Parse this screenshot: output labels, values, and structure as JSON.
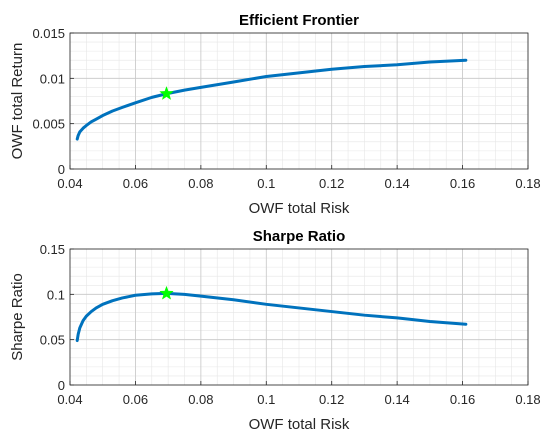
{
  "colors": {
    "series": "#0072BD",
    "marker": "#00FF00",
    "grid_major": "#c8c8c8",
    "grid_minor": "#e6e6e6",
    "axis": "#262626"
  },
  "chart_data": [
    {
      "type": "line",
      "title": "Efficient Frontier",
      "xlabel": "OWF total Risk",
      "ylabel": "OWF total Return",
      "xlim": [
        0.04,
        0.18
      ],
      "ylim": [
        0,
        0.015
      ],
      "xticks": [
        0.04,
        0.06,
        0.08,
        0.1,
        0.12,
        0.14,
        0.16,
        0.18
      ],
      "xtick_labels": [
        "0.04",
        "0.06",
        "0.08",
        "0.1",
        "0.12",
        "0.14",
        "0.16",
        "0.18"
      ],
      "yticks": [
        0,
        0.005,
        0.01,
        0.015
      ],
      "ytick_labels": [
        "0",
        "0.005",
        "0.01",
        "0.015"
      ],
      "grid": true,
      "minor_grid": true,
      "series": [
        {
          "x": [
            0.0422,
            0.0425,
            0.043,
            0.044,
            0.045,
            0.0465,
            0.048,
            0.05,
            0.053,
            0.056,
            0.06,
            0.065,
            0.0695,
            0.075,
            0.08,
            0.09,
            0.1,
            0.11,
            0.12,
            0.13,
            0.14,
            0.15,
            0.161
          ],
          "y": [
            0.0033,
            0.0037,
            0.0041,
            0.0045,
            0.0048,
            0.0052,
            0.0055,
            0.0059,
            0.0064,
            0.0068,
            0.0073,
            0.0079,
            0.0083,
            0.0087,
            0.009,
            0.0096,
            0.0102,
            0.0106,
            0.011,
            0.0113,
            0.0115,
            0.0118,
            0.012
          ]
        }
      ],
      "marker": {
        "x": 0.0695,
        "y": 0.0083,
        "shape": "star"
      }
    },
    {
      "type": "line",
      "title": "Sharpe Ratio",
      "xlabel": "OWF total Risk",
      "ylabel": "Sharpe Ratio",
      "xlim": [
        0.04,
        0.18
      ],
      "ylim": [
        0,
        0.15
      ],
      "xticks": [
        0.04,
        0.06,
        0.08,
        0.1,
        0.12,
        0.14,
        0.16,
        0.18
      ],
      "xtick_labels": [
        "0.04",
        "0.06",
        "0.08",
        "0.1",
        "0.12",
        "0.14",
        "0.16",
        "0.18"
      ],
      "yticks": [
        0,
        0.05,
        0.1,
        0.15
      ],
      "ytick_labels": [
        "0",
        "0.05",
        "0.1",
        "0.15"
      ],
      "grid": true,
      "minor_grid": true,
      "series": [
        {
          "x": [
            0.0422,
            0.0425,
            0.043,
            0.044,
            0.045,
            0.0465,
            0.048,
            0.05,
            0.053,
            0.056,
            0.06,
            0.065,
            0.0695,
            0.075,
            0.08,
            0.09,
            0.1,
            0.11,
            0.12,
            0.13,
            0.14,
            0.15,
            0.161
          ],
          "y": [
            0.049,
            0.056,
            0.063,
            0.071,
            0.076,
            0.081,
            0.085,
            0.089,
            0.093,
            0.096,
            0.099,
            0.1005,
            0.101,
            0.1,
            0.098,
            0.094,
            0.089,
            0.085,
            0.081,
            0.077,
            0.074,
            0.07,
            0.067
          ]
        }
      ],
      "marker": {
        "x": 0.0695,
        "y": 0.101,
        "shape": "star"
      }
    }
  ]
}
